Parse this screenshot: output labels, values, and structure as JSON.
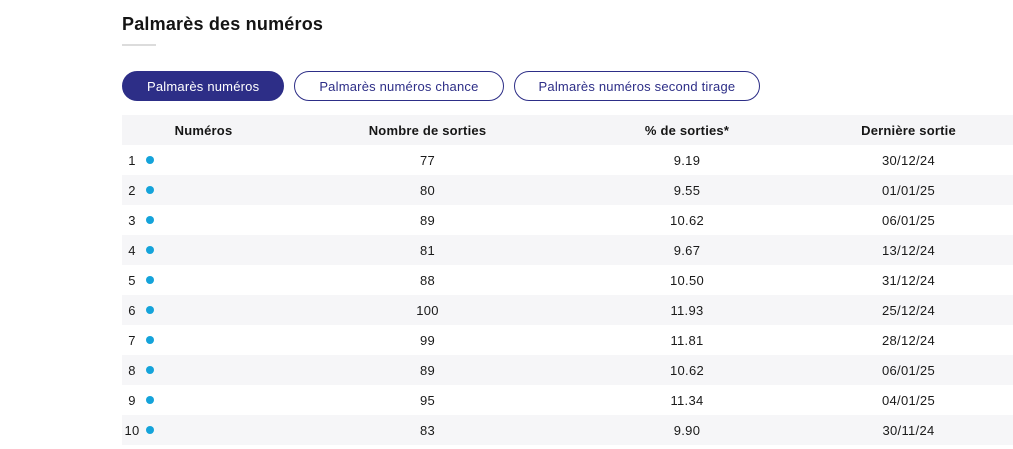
{
  "page": {
    "title": "Palmarès des numéros"
  },
  "tabs": [
    {
      "label": "Palmarès numéros",
      "active": true
    },
    {
      "label": "Palmarès numéros chance",
      "active": false
    },
    {
      "label": "Palmarès numéros second tirage",
      "active": false
    }
  ],
  "table": {
    "columns": [
      "Numéros",
      "Nombre de sorties",
      "% de sorties*",
      "Dernière sortie"
    ],
    "rows": [
      {
        "numero": "1",
        "sorties": "77",
        "pct": "9.19",
        "derniere": "30/12/24"
      },
      {
        "numero": "2",
        "sorties": "80",
        "pct": "9.55",
        "derniere": "01/01/25"
      },
      {
        "numero": "3",
        "sorties": "89",
        "pct": "10.62",
        "derniere": "06/01/25"
      },
      {
        "numero": "4",
        "sorties": "81",
        "pct": "9.67",
        "derniere": "13/12/24"
      },
      {
        "numero": "5",
        "sorties": "88",
        "pct": "10.50",
        "derniere": "31/12/24"
      },
      {
        "numero": "6",
        "sorties": "100",
        "pct": "11.93",
        "derniere": "25/12/24"
      },
      {
        "numero": "7",
        "sorties": "99",
        "pct": "11.81",
        "derniere": "28/12/24"
      },
      {
        "numero": "8",
        "sorties": "89",
        "pct": "10.62",
        "derniere": "06/01/25"
      },
      {
        "numero": "9",
        "sorties": "95",
        "pct": "11.34",
        "derniere": "04/01/25"
      },
      {
        "numero": "10",
        "sorties": "83",
        "pct": "9.90",
        "derniere": "30/11/24"
      }
    ]
  },
  "icons": {
    "number_marker": "ball-dot-icon"
  },
  "colors": {
    "accent_indigo": "#2d2e87",
    "ball_dot_blue": "#14a3da",
    "header_band_bg": "#f5f5f7",
    "alt_row_bg": "#f6f6f8",
    "title_rule_gray": "#dcdcdc"
  }
}
